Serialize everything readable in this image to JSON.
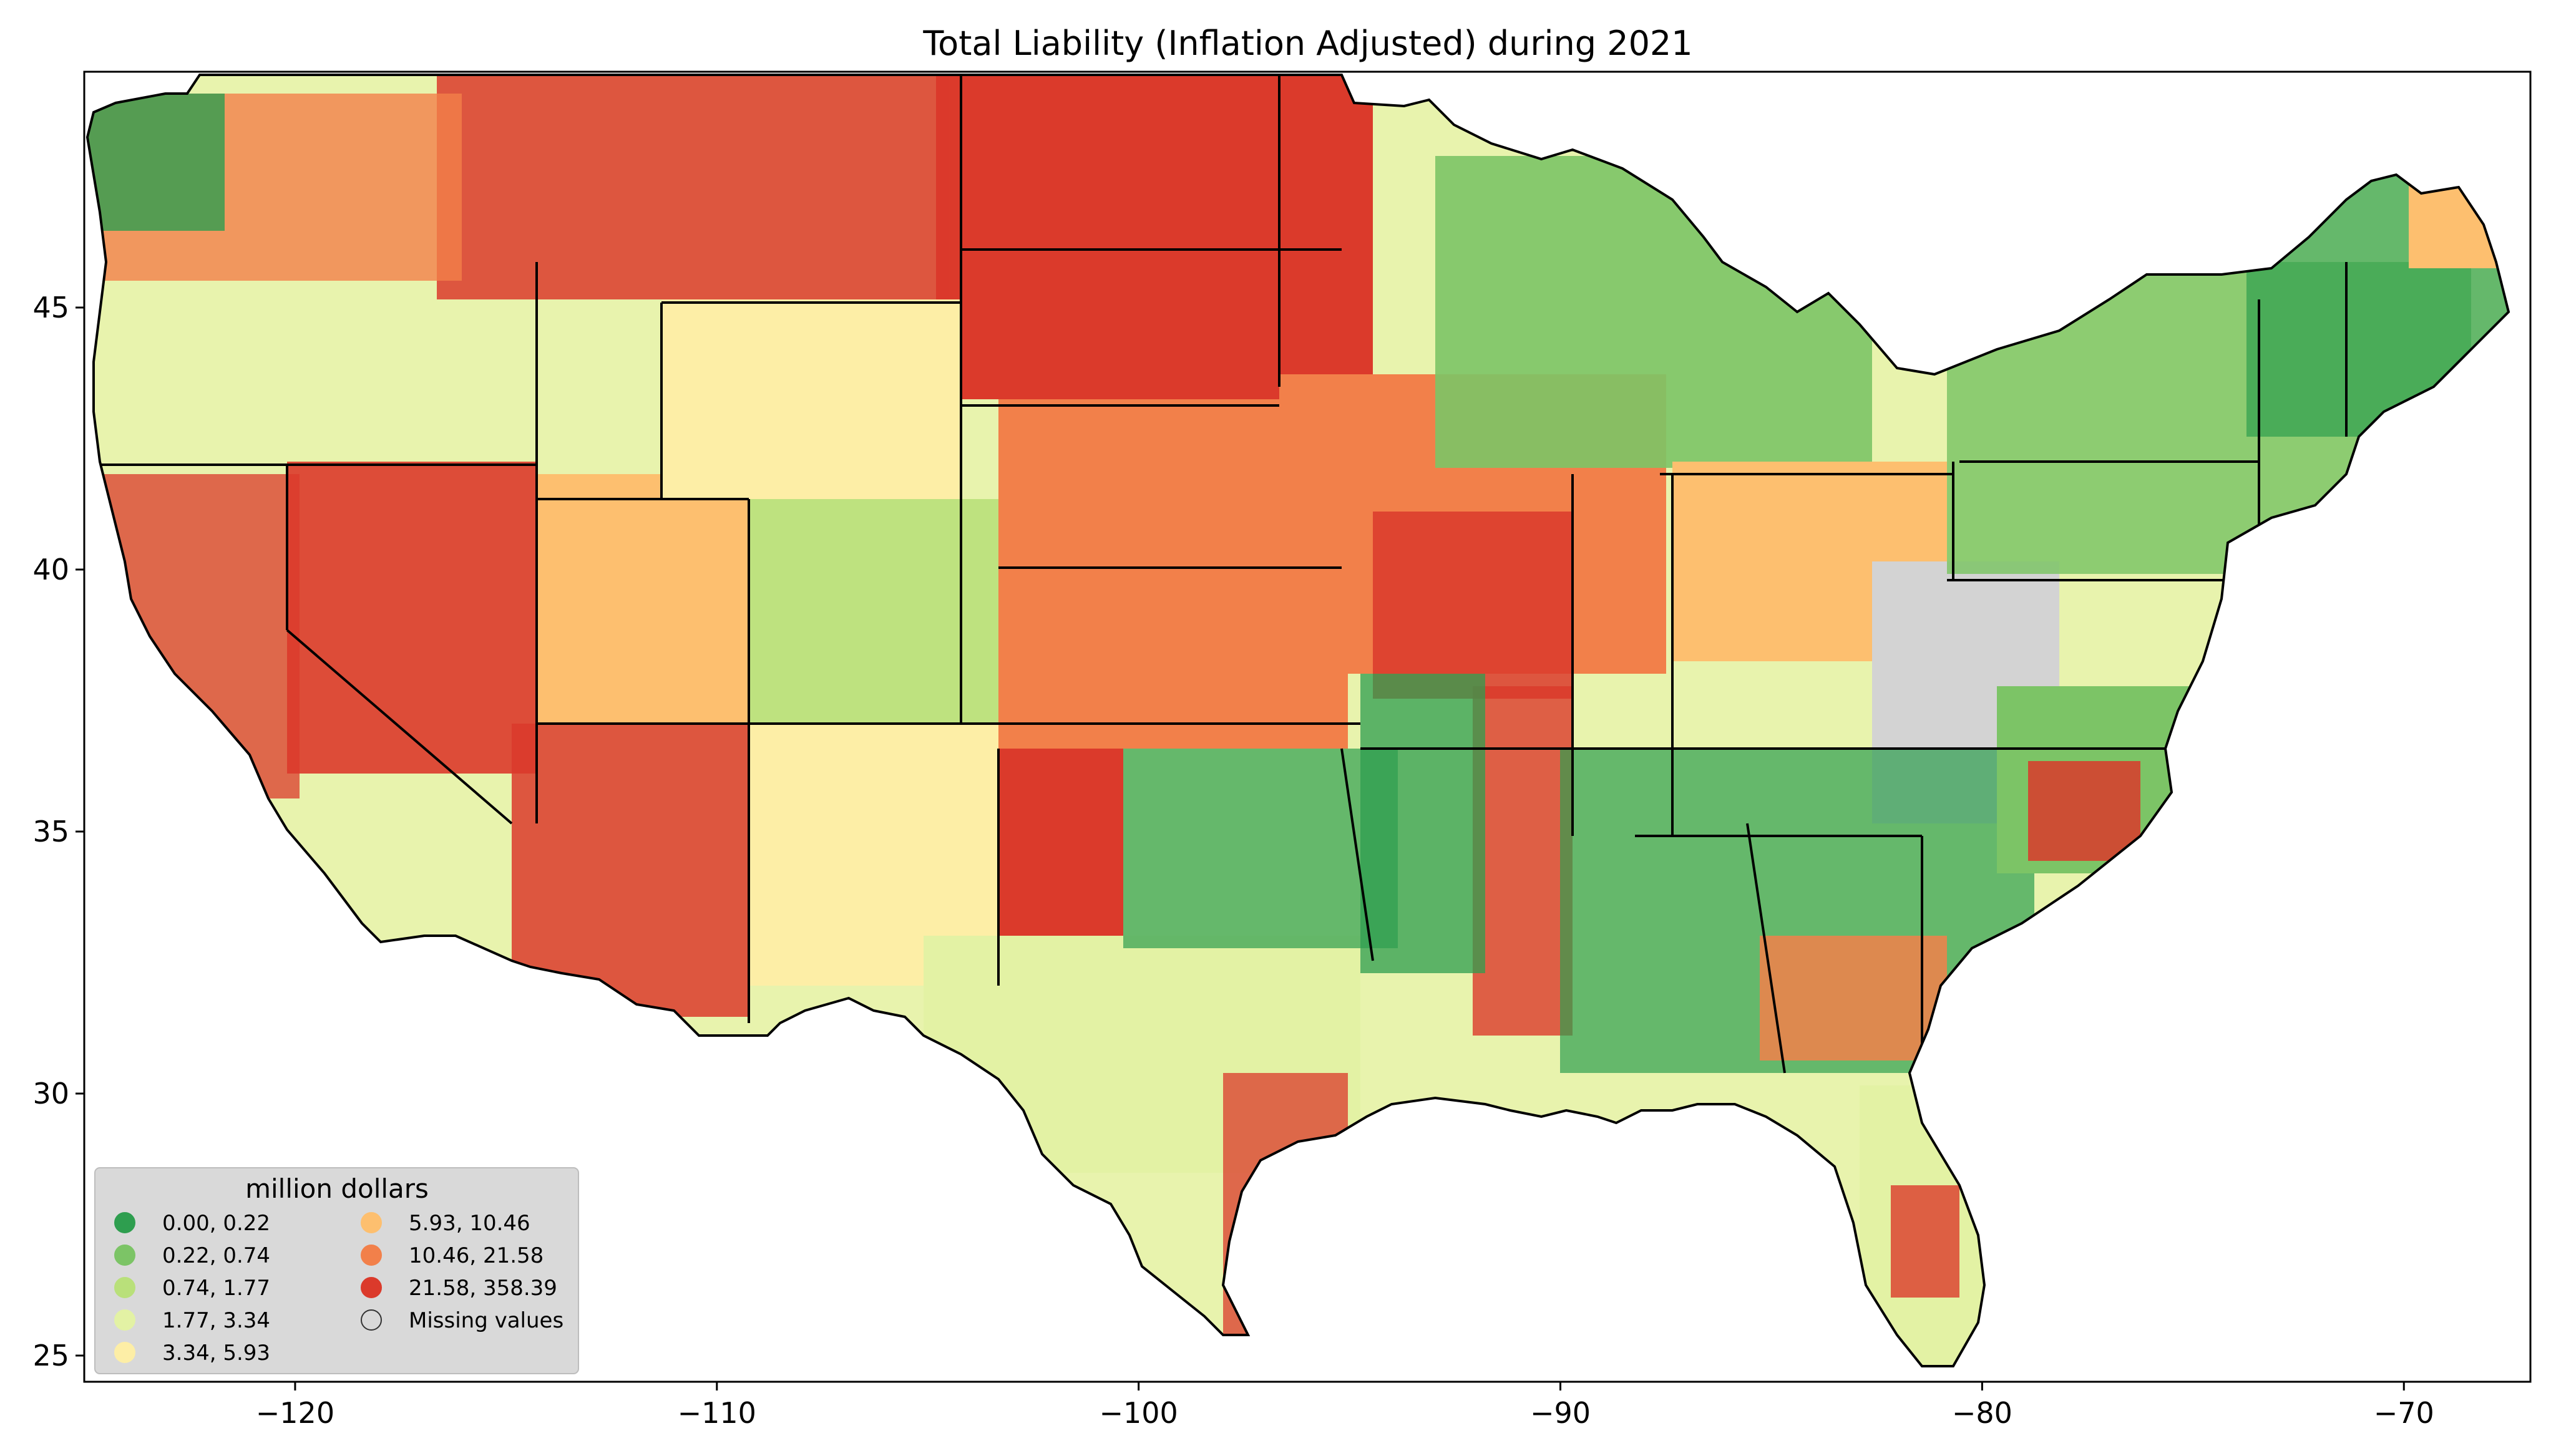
{
  "title": "Total Liability  (Inflation Adjusted) during 2021",
  "map": {
    "region": "contiguous United States",
    "unit": "million dollars",
    "x_ticks": [
      "−120",
      "−110",
      "−100",
      "−90",
      "−80",
      "−70"
    ],
    "y_ticks": [
      "45",
      "40",
      "35",
      "30",
      "25"
    ],
    "x_range": [
      -125,
      -67
    ],
    "y_range": [
      24.5,
      49.5
    ]
  },
  "legend": {
    "title": "million dollars",
    "items": [
      {
        "label": "0.00,   0.22",
        "color": "#2e9e4f"
      },
      {
        "label": "0.22,   0.74",
        "color": "#7cc466"
      },
      {
        "label": "0.74,   1.77",
        "color": "#b9e07a"
      },
      {
        "label": "1.77,   3.34",
        "color": "#e3f2a4"
      },
      {
        "label": "3.34,   5.93",
        "color": "#fdeea6"
      },
      {
        "label": "5.93,  10.46",
        "color": "#fdbf6f"
      },
      {
        "label": "10.46,  21.58",
        "color": "#f2804a"
      },
      {
        "label": "21.58, 358.39",
        "color": "#db3a2b"
      },
      {
        "label": "Missing values",
        "color": "#d3d3d3"
      }
    ]
  }
}
